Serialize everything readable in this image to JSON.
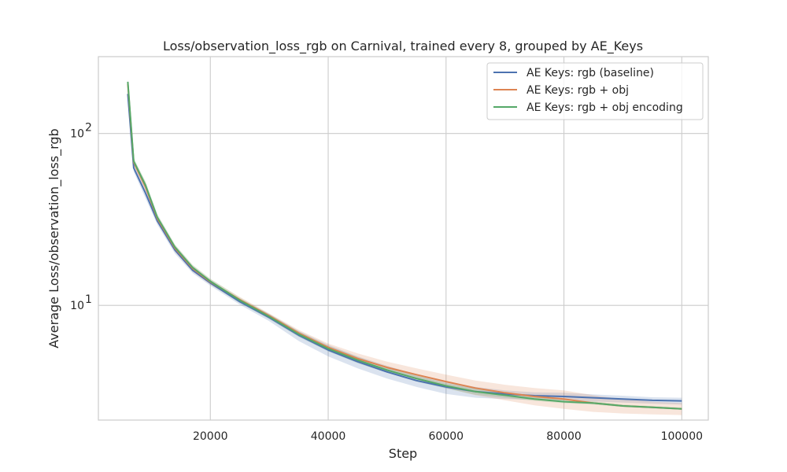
{
  "chart_data": {
    "type": "line",
    "title": "Loss/observation_loss_rgb on Carnival, trained every 8, grouped by AE_Keys",
    "xlabel": "Step",
    "ylabel": "Average Loss/observation_loss_rgb",
    "y_scale": "log",
    "xlim": [
      1000,
      104500
    ],
    "ylim": [
      2.15,
      280
    ],
    "xticks": [
      20000,
      40000,
      60000,
      80000,
      100000
    ],
    "xtick_labels": [
      "20000",
      "40000",
      "60000",
      "80000",
      "100000"
    ],
    "yticks": [
      10,
      100
    ],
    "ytick_labels": [
      {
        "base": "10",
        "exp": "1"
      },
      {
        "base": "10",
        "exp": "2"
      }
    ],
    "grid": true,
    "legend_position": "top-right",
    "series": [
      {
        "name": "AE Keys: rgb (baseline)",
        "color": "#4c72b0",
        "x": [
          6000,
          7000,
          9000,
          11000,
          14000,
          17000,
          20000,
          25000,
          30000,
          35000,
          40000,
          45000,
          50000,
          55000,
          60000,
          65000,
          70000,
          75000,
          80000,
          85000,
          90000,
          95000,
          100000
        ],
        "y": [
          170,
          63,
          45,
          31,
          21,
          16,
          13.5,
          10.5,
          8.5,
          6.7,
          5.5,
          4.7,
          4.1,
          3.65,
          3.35,
          3.15,
          3.05,
          2.98,
          2.95,
          2.9,
          2.85,
          2.8,
          2.78
        ],
        "band_low": [
          160,
          60,
          42,
          29.5,
          20,
          15.4,
          13,
          10.1,
          8.1,
          6.2,
          5.05,
          4.3,
          3.75,
          3.35,
          3.05,
          2.9,
          2.85,
          2.82,
          2.8,
          2.76,
          2.72,
          2.68,
          2.65
        ],
        "band_high": [
          180,
          66,
          48,
          32.5,
          22,
          16.6,
          14,
          10.9,
          8.9,
          7.1,
          5.9,
          5.05,
          4.45,
          3.95,
          3.6,
          3.35,
          3.2,
          3.12,
          3.1,
          3.03,
          2.98,
          2.92,
          2.9
        ]
      },
      {
        "name": "AE Keys: rgb + obj",
        "color": "#dd8452",
        "x": [
          6000,
          7000,
          9000,
          11000,
          14000,
          17000,
          20000,
          25000,
          30000,
          35000,
          40000,
          45000,
          50000,
          55000,
          60000,
          65000,
          70000,
          75000,
          80000,
          85000,
          90000,
          95000,
          100000
        ],
        "y": [
          195,
          68,
          49,
          32,
          21.5,
          16.4,
          13.7,
          10.8,
          8.7,
          6.9,
          5.7,
          4.9,
          4.35,
          3.95,
          3.6,
          3.3,
          3.1,
          2.95,
          2.85,
          2.7,
          2.6,
          2.55,
          2.5
        ],
        "band_low": [
          185,
          65,
          46,
          30.5,
          20.5,
          15.7,
          13.2,
          10.4,
          8.4,
          6.7,
          5.5,
          4.7,
          4.15,
          3.7,
          3.3,
          3.0,
          2.8,
          2.62,
          2.5,
          2.4,
          2.35,
          2.32,
          2.3
        ],
        "band_high": [
          205,
          71,
          52,
          33.5,
          22.5,
          17.1,
          14.2,
          11.2,
          9.0,
          7.2,
          6.0,
          5.25,
          4.7,
          4.3,
          3.95,
          3.65,
          3.45,
          3.3,
          3.2,
          3.0,
          2.85,
          2.75,
          2.7
        ]
      },
      {
        "name": "AE Keys: rgb + obj encoding",
        "color": "#55a868",
        "x": [
          6000,
          7000,
          9000,
          11000,
          14000,
          17000,
          20000,
          25000,
          30000,
          35000,
          40000,
          45000,
          50000,
          55000,
          60000,
          65000,
          70000,
          75000,
          80000,
          85000,
          90000,
          95000,
          100000
        ],
        "y": [
          200,
          69,
          50,
          32.5,
          21.8,
          16.6,
          13.8,
          10.7,
          8.6,
          6.8,
          5.6,
          4.8,
          4.2,
          3.75,
          3.4,
          3.15,
          3.0,
          2.85,
          2.75,
          2.7,
          2.6,
          2.55,
          2.5
        ],
        "band_low": [
          192,
          66,
          47.5,
          31,
          21,
          16,
          13.3,
          10.3,
          8.3,
          6.55,
          5.4,
          4.6,
          4.05,
          3.6,
          3.28,
          3.02,
          2.9,
          2.78,
          2.7,
          2.65,
          2.56,
          2.51,
          2.47
        ],
        "band_high": [
          208,
          72,
          52.5,
          34,
          22.6,
          17.2,
          14.3,
          11.1,
          8.9,
          7.05,
          5.8,
          5.0,
          4.35,
          3.9,
          3.52,
          3.28,
          3.1,
          2.93,
          2.82,
          2.76,
          2.65,
          2.59,
          2.54
        ]
      }
    ]
  }
}
